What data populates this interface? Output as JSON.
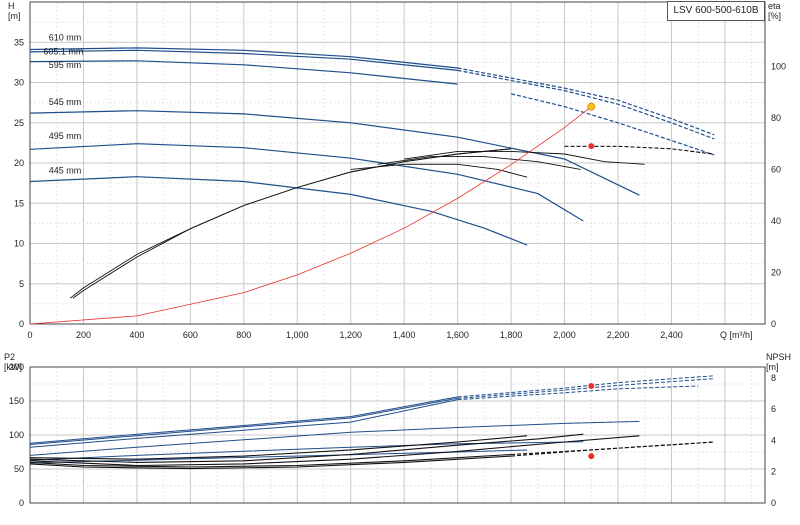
{
  "title": "LSV 600-500-610B",
  "colors": {
    "curve": "#1f4e8c",
    "eta": "#111111",
    "system": "#e8312a",
    "grid": "#cfcfcf",
    "op_point": "#e8312a",
    "op_point_top": "#f5c518"
  },
  "chart_data": [
    {
      "type": "line",
      "name": "head-efficiency",
      "x_label": "Q [m³/h]",
      "y_label_left": "H\n[m]",
      "y_label_right": "eta\n[%]",
      "x_ticks": [
        "0",
        "200",
        "400",
        "600",
        "800",
        "1,000",
        "1,200",
        "1,400",
        "1,600",
        "1,800",
        "2,000",
        "2,200",
        "2,400"
      ],
      "xlim": [
        0,
        2750
      ],
      "ylim": [
        0,
        40
      ],
      "y_ticks_left": [
        "0",
        "5",
        "10",
        "15",
        "20",
        "25",
        "30",
        "35"
      ],
      "y_right_lim": [
        0,
        125
      ],
      "y_ticks_right": [
        "0",
        "20",
        "40",
        "60",
        "80",
        "100"
      ],
      "head_curves": [
        {
          "label": "610 mm",
          "points": [
            [
              0,
              34.1
            ],
            [
              400,
              34.3
            ],
            [
              800,
              34.0
            ],
            [
              1200,
              33.2
            ],
            [
              1600,
              31.8
            ],
            [
              2000,
              29.3
            ],
            [
              2200,
              27.8
            ],
            [
              2400,
              25.5
            ],
            [
              2560,
              23.5
            ]
          ],
          "dashed_from": 1600
        },
        {
          "label": "605.1 mm",
          "points": [
            [
              0,
              33.8
            ],
            [
              400,
              34.0
            ],
            [
              800,
              33.6
            ],
            [
              1200,
              32.9
            ],
            [
              1600,
              31.5
            ],
            [
              2000,
              29.0
            ],
            [
              2200,
              27.3
            ],
            [
              2400,
              25.0
            ],
            [
              2560,
              23.0
            ]
          ],
          "dashed_from": 1600
        },
        {
          "label": "595 mm",
          "points": [
            [
              0,
              32.6
            ],
            [
              400,
              32.7
            ],
            [
              800,
              32.2
            ],
            [
              1200,
              31.2
            ],
            [
              1600,
              29.8
            ],
            [
              1800,
              28.6
            ],
            [
              2000,
              27.0
            ],
            [
              2200,
              25.0
            ],
            [
              2400,
              22.8
            ],
            [
              2560,
              21.0
            ]
          ],
          "dashed_from": 1750
        },
        {
          "label": "545 mm",
          "points": [
            [
              0,
              26.2
            ],
            [
              400,
              26.5
            ],
            [
              800,
              26.1
            ],
            [
              1200,
              25.0
            ],
            [
              1600,
              23.2
            ],
            [
              2000,
              20.5
            ],
            [
              2280,
              16.0
            ]
          ],
          "dashed_from": null
        },
        {
          "label": "495 mm",
          "points": [
            [
              0,
              21.7
            ],
            [
              400,
              22.4
            ],
            [
              800,
              21.9
            ],
            [
              1200,
              20.6
            ],
            [
              1600,
              18.6
            ],
            [
              1900,
              16.2
            ],
            [
              2070,
              12.8
            ]
          ],
          "dashed_from": null
        },
        {
          "label": "445 mm",
          "points": [
            [
              0,
              17.7
            ],
            [
              400,
              18.3
            ],
            [
              800,
              17.7
            ],
            [
              1200,
              16.1
            ],
            [
              1500,
              14.0
            ],
            [
              1700,
              11.9
            ],
            [
              1860,
              9.8
            ]
          ],
          "dashed_from": null
        }
      ],
      "eta_curves": [
        {
          "points": [
            [
              150,
              10
            ],
            [
              200,
              14
            ],
            [
              400,
              27
            ],
            [
              600,
              37
            ],
            [
              800,
              46
            ],
            [
              1000,
              53
            ],
            [
              1200,
              59
            ],
            [
              1400,
              63
            ],
            [
              1600,
              66
            ],
            [
              1800,
              68
            ],
            [
              2000,
              69
            ],
            [
              2200,
              69
            ],
            [
              2400,
              68
            ],
            [
              2560,
              66
            ]
          ],
          "dashed_from": 1900
        },
        {
          "points": [
            [
              160,
              10
            ],
            [
              200,
              13
            ],
            [
              400,
              26
            ],
            [
              600,
              37
            ],
            [
              800,
              46
            ],
            [
              1000,
              53
            ],
            [
              1200,
              59
            ],
            [
              1400,
              63
            ],
            [
              1600,
              66
            ],
            [
              1800,
              68
            ],
            [
              2000,
              69
            ],
            [
              2200,
              69
            ],
            [
              2400,
              68
            ],
            [
              2550,
              66
            ]
          ],
          "dashed_from": 1900
        },
        {
          "points": [
            [
              1400,
              64
            ],
            [
              1600,
              67
            ],
            [
              1800,
              67
            ],
            [
              2000,
              66
            ],
            [
              2150,
              63
            ],
            [
              2300,
              62
            ]
          ],
          "dashed_from": null
        },
        {
          "points": [
            [
              1300,
              62
            ],
            [
              1500,
              65
            ],
            [
              1700,
              65
            ],
            [
              1900,
              63
            ],
            [
              2060,
              60
            ]
          ],
          "dashed_from": null
        },
        {
          "points": [
            [
              1200,
              60
            ],
            [
              1400,
              62
            ],
            [
              1600,
              62
            ],
            [
              1750,
              60
            ],
            [
              1860,
              57
            ]
          ],
          "dashed_from": null
        }
      ],
      "system_curve": {
        "points": [
          [
            0,
            0
          ],
          [
            400,
            1.0
          ],
          [
            800,
            3.9
          ],
          [
            1000,
            6.1
          ],
          [
            1200,
            8.8
          ],
          [
            1400,
            11.9
          ],
          [
            1600,
            15.6
          ],
          [
            1800,
            19.8
          ],
          [
            2000,
            24.4
          ],
          [
            2100,
            27.0
          ]
        ]
      },
      "operating_points": [
        {
          "x": 2100,
          "y": 27.0,
          "kind": "head"
        },
        {
          "x": 2100,
          "y": 22.1,
          "kind": "eta"
        }
      ],
      "curve_labels": [
        {
          "text": "610 mm",
          "x": 70,
          "y": 35.2
        },
        {
          "text": "605.1 mm",
          "x": 50,
          "y": 33.5
        },
        {
          "text": "595 mm",
          "x": 70,
          "y": 31.8
        },
        {
          "text": "545 mm",
          "x": 70,
          "y": 27.2
        },
        {
          "text": "495 mm",
          "x": 70,
          "y": 23.0
        },
        {
          "text": "445 mm",
          "x": 70,
          "y": 18.7
        }
      ]
    },
    {
      "type": "line",
      "name": "power-npsh",
      "y_label_left": "P2\n[kW]",
      "y_label_right": "NPSH\n[m]",
      "xlim": [
        0,
        2750
      ],
      "ylim": [
        0,
        200
      ],
      "y_ticks_left": [
        "0",
        "50",
        "100",
        "150",
        "200"
      ],
      "y_right_lim": [
        0,
        8.7
      ],
      "y_ticks_right": [
        "0",
        "2",
        "4",
        "6",
        "8"
      ],
      "power_curves": [
        {
          "points": [
            [
              0,
              88
            ],
            [
              400,
              101
            ],
            [
              800,
              114
            ],
            [
              1200,
              127
            ],
            [
              1600,
              156
            ],
            [
              2000,
              169
            ],
            [
              2200,
              177
            ],
            [
              2560,
              187
            ]
          ],
          "dashed_from": 1600
        },
        {
          "points": [
            [
              0,
              86
            ],
            [
              400,
              99
            ],
            [
              800,
              112
            ],
            [
              1200,
              125
            ],
            [
              1600,
              154
            ],
            [
              2000,
              166
            ],
            [
              2200,
              173
            ],
            [
              2560,
              183
            ]
          ],
          "dashed_from": 1600
        },
        {
          "points": [
            [
              0,
              82
            ],
            [
              400,
              95
            ],
            [
              800,
              107
            ],
            [
              1200,
              119
            ],
            [
              1600,
              152
            ],
            [
              2000,
              162
            ],
            [
              2200,
              168
            ],
            [
              2500,
              172
            ]
          ],
          "dashed_from": 1600
        },
        {
          "points": [
            [
              0,
              70
            ],
            [
              400,
              82
            ],
            [
              800,
              93
            ],
            [
              1200,
              104
            ],
            [
              1600,
              111
            ],
            [
              2000,
              117
            ],
            [
              2280,
              120
            ]
          ],
          "dashed_from": null
        },
        {
          "points": [
            [
              0,
              63
            ],
            [
              400,
              70
            ],
            [
              800,
              76
            ],
            [
              1200,
              82
            ],
            [
              1600,
              87
            ],
            [
              2070,
              90
            ]
          ],
          "dashed_from": null
        },
        {
          "points": [
            [
              0,
              59
            ],
            [
              400,
              63
            ],
            [
              800,
              67
            ],
            [
              1200,
              71
            ],
            [
              1600,
              75
            ],
            [
              1860,
              78
            ]
          ],
          "dashed_from": null
        }
      ],
      "npsh_curves": [
        {
          "points": [
            [
              0,
              2.5
            ],
            [
              200,
              2.3
            ],
            [
              600,
              2.2
            ],
            [
              1000,
              2.3
            ],
            [
              1400,
              2.6
            ],
            [
              1800,
              3.0
            ],
            [
              2100,
              3.4
            ],
            [
              2560,
              3.9
            ]
          ],
          "dashed_from": 1800
        },
        {
          "points": [
            [
              0,
              2.6
            ],
            [
              200,
              2.4
            ],
            [
              600,
              2.3
            ],
            [
              1000,
              2.4
            ],
            [
              1400,
              2.7
            ],
            [
              1800,
              3.1
            ],
            [
              2100,
              3.4
            ],
            [
              2560,
              3.9
            ]
          ],
          "dashed_from": 1800
        },
        {
          "points": [
            [
              0,
              2.7
            ],
            [
              400,
              2.4
            ],
            [
              800,
              2.5
            ],
            [
              1200,
              2.8
            ],
            [
              1600,
              3.3
            ],
            [
              2000,
              3.9
            ],
            [
              2280,
              4.3
            ]
          ],
          "dashed_from": null
        },
        {
          "points": [
            [
              0,
              2.8
            ],
            [
              400,
              2.6
            ],
            [
              800,
              2.7
            ],
            [
              1200,
              3.1
            ],
            [
              1600,
              3.7
            ],
            [
              1900,
              4.1
            ],
            [
              2070,
              4.4
            ]
          ],
          "dashed_from": null
        },
        {
          "points": [
            [
              0,
              2.9
            ],
            [
              400,
              2.8
            ],
            [
              800,
              3.0
            ],
            [
              1200,
              3.4
            ],
            [
              1600,
              3.9
            ],
            [
              1860,
              4.3
            ]
          ],
          "dashed_from": null
        }
      ],
      "operating_points": [
        {
          "x": 2100,
          "y": 172,
          "kind": "power"
        },
        {
          "x": 2100,
          "y": 69,
          "kind": "npsh"
        }
      ]
    }
  ]
}
